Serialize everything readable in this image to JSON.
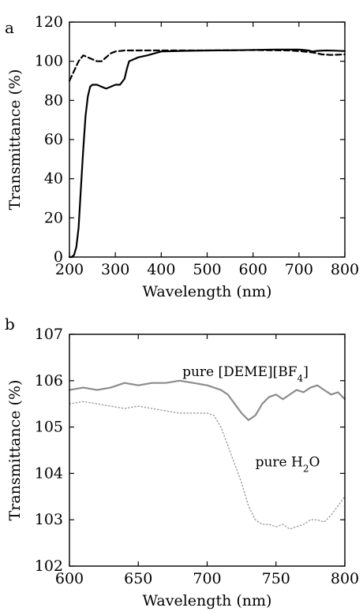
{
  "chart_data": [
    {
      "panel_label": "a",
      "type": "line",
      "xlabel": "Wavelength (nm)",
      "ylabel": "Transmittance (%)",
      "xlim": [
        200,
        800
      ],
      "ylim": [
        0,
        120
      ],
      "x_ticks": [
        200,
        300,
        400,
        500,
        600,
        700,
        800
      ],
      "y_ticks": [
        0,
        20,
        40,
        60,
        80,
        100,
        120
      ],
      "grid": false,
      "series": [
        {
          "style": "solid",
          "color": "#000000",
          "x": [
            200,
            205,
            210,
            215,
            220,
            225,
            230,
            235,
            240,
            245,
            250,
            255,
            260,
            270,
            280,
            290,
            300,
            310,
            320,
            325,
            330,
            340,
            350,
            370,
            400,
            450,
            500,
            550,
            600,
            650,
            700,
            720,
            730,
            740,
            760,
            780,
            800
          ],
          "y": [
            0,
            0,
            1,
            5,
            15,
            35,
            55,
            72,
            82,
            87,
            88,
            88,
            88,
            87,
            86,
            87,
            88,
            88,
            91,
            96,
            100,
            101,
            102,
            103,
            105,
            105.3,
            105.5,
            105.6,
            105.8,
            106,
            106,
            105.5,
            105,
            105.3,
            105.5,
            105.4,
            105.2
          ]
        },
        {
          "style": "dashed",
          "color": "#000000",
          "x": [
            200,
            210,
            220,
            230,
            240,
            250,
            260,
            270,
            280,
            290,
            300,
            320,
            350,
            400,
            500,
            600,
            680,
            710,
            730,
            750,
            770,
            800
          ],
          "y": [
            90,
            95,
            100,
            103,
            102,
            101,
            100,
            100,
            102,
            104,
            105,
            105.5,
            105.5,
            105.5,
            105.5,
            105.7,
            105.5,
            105,
            104.5,
            103.5,
            103.2,
            103.5
          ]
        }
      ]
    },
    {
      "panel_label": "b",
      "type": "line",
      "xlabel": "Wavelength (nm)",
      "ylabel": "Transmittance (%)",
      "xlim": [
        600,
        800
      ],
      "ylim": [
        102,
        107
      ],
      "x_ticks": [
        600,
        650,
        700,
        750,
        800
      ],
      "y_ticks": [
        102,
        103,
        104,
        105,
        106,
        107
      ],
      "grid": false,
      "annotations": [
        {
          "text": "pure [DEME][BF",
          "sub": "4",
          "after": "]",
          "x": 682,
          "y": 106.1,
          "anchor": "start"
        },
        {
          "text": "pure H",
          "sub": "2",
          "after": "O",
          "x": 735,
          "y": 104.15,
          "anchor": "start"
        }
      ],
      "series": [
        {
          "label": "pure [DEME][BF4]",
          "style": "solid",
          "color": "#8c8c8c",
          "x": [
            600,
            610,
            620,
            630,
            640,
            650,
            660,
            670,
            680,
            690,
            700,
            705,
            710,
            715,
            720,
            725,
            730,
            735,
            740,
            745,
            750,
            755,
            760,
            765,
            770,
            775,
            780,
            785,
            790,
            795,
            800
          ],
          "y": [
            105.8,
            105.85,
            105.8,
            105.85,
            105.95,
            105.9,
            105.95,
            105.95,
            106.0,
            105.95,
            105.9,
            105.85,
            105.8,
            105.7,
            105.5,
            105.3,
            105.15,
            105.25,
            105.5,
            105.65,
            105.7,
            105.6,
            105.7,
            105.8,
            105.75,
            105.85,
            105.9,
            105.8,
            105.7,
            105.75,
            105.6
          ]
        },
        {
          "label": "pure H2O",
          "style": "dotted",
          "color": "#9c9c9c",
          "x": [
            600,
            610,
            620,
            630,
            640,
            650,
            660,
            670,
            680,
            690,
            700,
            705,
            710,
            715,
            720,
            725,
            730,
            735,
            740,
            745,
            750,
            755,
            760,
            765,
            770,
            775,
            780,
            785,
            790,
            795,
            800
          ],
          "y": [
            105.5,
            105.55,
            105.5,
            105.45,
            105.4,
            105.45,
            105.4,
            105.35,
            105.3,
            105.3,
            105.3,
            105.25,
            105.0,
            104.6,
            104.2,
            103.8,
            103.3,
            103.0,
            102.9,
            102.9,
            102.85,
            102.9,
            102.8,
            102.85,
            102.9,
            103.0,
            103.0,
            102.95,
            103.1,
            103.3,
            103.5
          ]
        }
      ]
    }
  ]
}
